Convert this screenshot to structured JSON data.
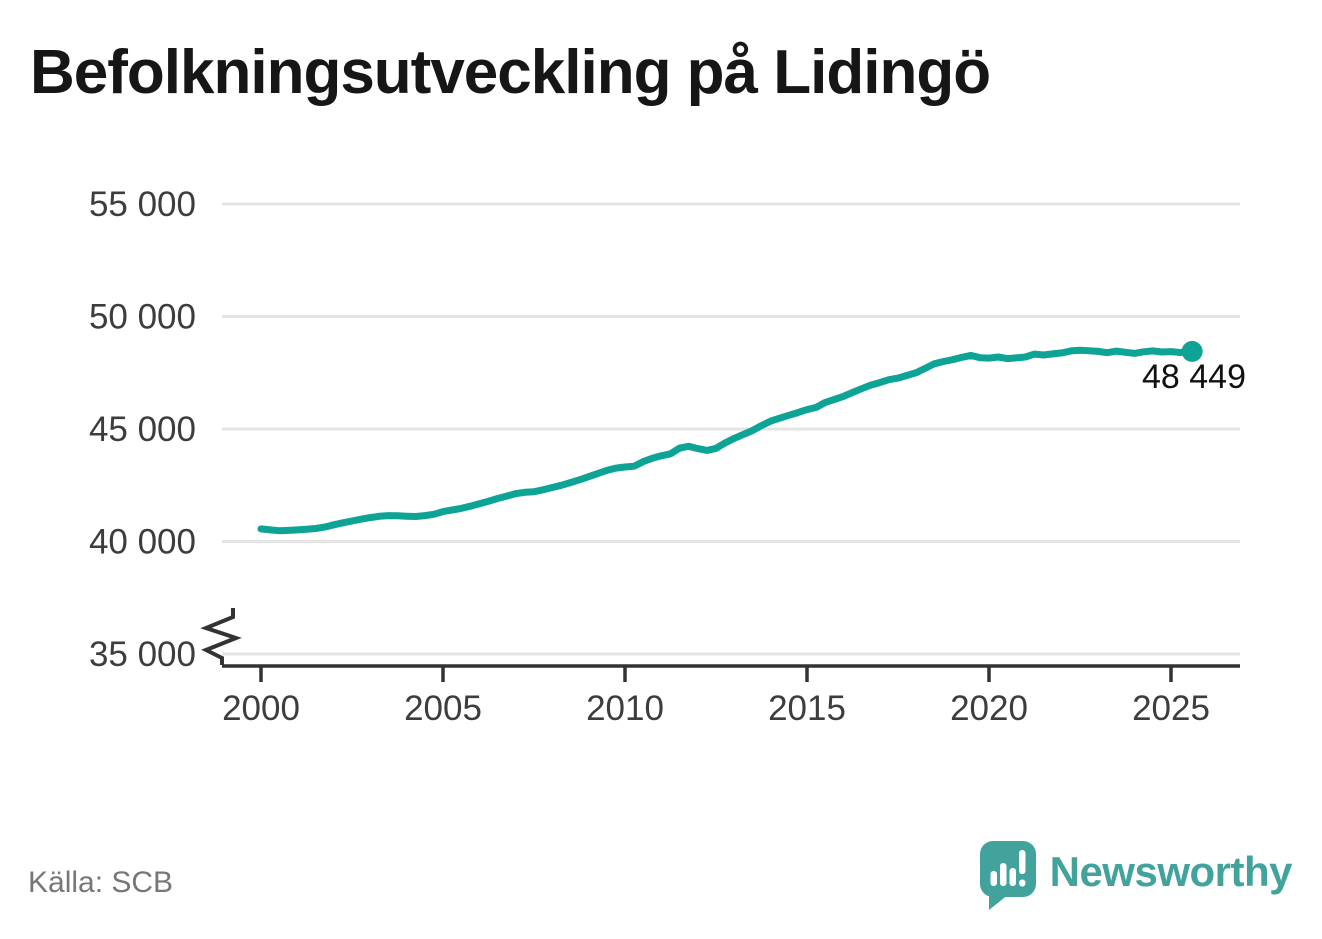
{
  "title": "Befolkningsutveckling på Lidingö",
  "source": "Källa: SCB",
  "logo": {
    "text": "Newsworthy"
  },
  "colors": {
    "line": "#0da395",
    "logo": "#42a39d",
    "grid": "#e4e4e4",
    "axis": "#333333",
    "title_text": "#161616",
    "tick_text": "#3d3d3d",
    "source_text": "#777777",
    "annotation_text": "#111111"
  },
  "chart_data": {
    "type": "line",
    "title": "Befolkningsutveckling på Lidingö",
    "source": "Källa: SCB",
    "grid": true,
    "legend": "none",
    "ylim": [
      35000,
      56000
    ],
    "axis_break_below": 35000,
    "x_ticks": [
      {
        "value": 2000,
        "label": "2000"
      },
      {
        "value": 2005,
        "label": "2005"
      },
      {
        "value": 2010,
        "label": "2010"
      },
      {
        "value": 2015,
        "label": "2015"
      },
      {
        "value": 2020,
        "label": "2020"
      },
      {
        "value": 2025,
        "label": "2025"
      }
    ],
    "y_ticks": [
      {
        "value": 55000,
        "label": "55 000"
      },
      {
        "value": 50000,
        "label": "50 000"
      },
      {
        "value": 45000,
        "label": "45 000"
      },
      {
        "value": 40000,
        "label": "40 000"
      },
      {
        "value": 35000,
        "label": "35 000"
      }
    ],
    "endpoint": {
      "year": 2025.58,
      "value": 48449,
      "label": "48 449"
    },
    "series": [
      {
        "points": [
          [
            2000.0,
            40560
          ],
          [
            2000.25,
            40515
          ],
          [
            2000.5,
            40480
          ],
          [
            2000.75,
            40495
          ],
          [
            2001.0,
            40515
          ],
          [
            2001.25,
            40545
          ],
          [
            2001.5,
            40580
          ],
          [
            2001.75,
            40640
          ],
          [
            2002.0,
            40740
          ],
          [
            2002.25,
            40830
          ],
          [
            2002.5,
            40910
          ],
          [
            2002.75,
            40990
          ],
          [
            2003.0,
            41060
          ],
          [
            2003.25,
            41120
          ],
          [
            2003.5,
            41150
          ],
          [
            2003.75,
            41145
          ],
          [
            2004.0,
            41125
          ],
          [
            2004.25,
            41110
          ],
          [
            2004.5,
            41150
          ],
          [
            2004.75,
            41210
          ],
          [
            2005.0,
            41330
          ],
          [
            2005.25,
            41400
          ],
          [
            2005.5,
            41470
          ],
          [
            2005.75,
            41570
          ],
          [
            2006.0,
            41680
          ],
          [
            2006.25,
            41790
          ],
          [
            2006.5,
            41910
          ],
          [
            2006.75,
            42020
          ],
          [
            2007.0,
            42130
          ],
          [
            2007.25,
            42185
          ],
          [
            2007.5,
            42215
          ],
          [
            2007.75,
            42300
          ],
          [
            2008.0,
            42400
          ],
          [
            2008.25,
            42500
          ],
          [
            2008.5,
            42620
          ],
          [
            2008.75,
            42740
          ],
          [
            2009.0,
            42880
          ],
          [
            2009.25,
            43020
          ],
          [
            2009.5,
            43160
          ],
          [
            2009.75,
            43260
          ],
          [
            2010.0,
            43310
          ],
          [
            2010.25,
            43345
          ],
          [
            2010.5,
            43550
          ],
          [
            2010.75,
            43700
          ],
          [
            2011.0,
            43810
          ],
          [
            2011.25,
            43900
          ],
          [
            2011.5,
            44150
          ],
          [
            2011.75,
            44230
          ],
          [
            2012.0,
            44130
          ],
          [
            2012.25,
            44050
          ],
          [
            2012.5,
            44140
          ],
          [
            2012.75,
            44380
          ],
          [
            2013.0,
            44580
          ],
          [
            2013.25,
            44760
          ],
          [
            2013.5,
            44930
          ],
          [
            2013.75,
            45150
          ],
          [
            2014.0,
            45350
          ],
          [
            2014.25,
            45480
          ],
          [
            2014.5,
            45610
          ],
          [
            2014.75,
            45730
          ],
          [
            2015.0,
            45860
          ],
          [
            2015.25,
            45960
          ],
          [
            2015.5,
            46180
          ],
          [
            2015.75,
            46310
          ],
          [
            2016.0,
            46450
          ],
          [
            2016.25,
            46620
          ],
          [
            2016.5,
            46790
          ],
          [
            2016.75,
            46950
          ],
          [
            2017.0,
            47060
          ],
          [
            2017.25,
            47190
          ],
          [
            2017.5,
            47260
          ],
          [
            2017.75,
            47380
          ],
          [
            2018.0,
            47500
          ],
          [
            2018.25,
            47700
          ],
          [
            2018.5,
            47900
          ],
          [
            2018.75,
            48000
          ],
          [
            2019.0,
            48080
          ],
          [
            2019.25,
            48180
          ],
          [
            2019.5,
            48270
          ],
          [
            2019.75,
            48170
          ],
          [
            2020.0,
            48150
          ],
          [
            2020.25,
            48200
          ],
          [
            2020.5,
            48130
          ],
          [
            2020.75,
            48160
          ],
          [
            2021.0,
            48200
          ],
          [
            2021.25,
            48330
          ],
          [
            2021.5,
            48290
          ],
          [
            2021.75,
            48340
          ],
          [
            2022.0,
            48380
          ],
          [
            2022.25,
            48470
          ],
          [
            2022.5,
            48500
          ],
          [
            2022.75,
            48480
          ],
          [
            2023.0,
            48450
          ],
          [
            2023.25,
            48390
          ],
          [
            2023.5,
            48460
          ],
          [
            2023.75,
            48410
          ],
          [
            2024.0,
            48360
          ],
          [
            2024.25,
            48430
          ],
          [
            2024.5,
            48470
          ],
          [
            2024.75,
            48420
          ],
          [
            2025.0,
            48440
          ],
          [
            2025.25,
            48400
          ],
          [
            2025.58,
            48449
          ]
        ]
      }
    ]
  }
}
